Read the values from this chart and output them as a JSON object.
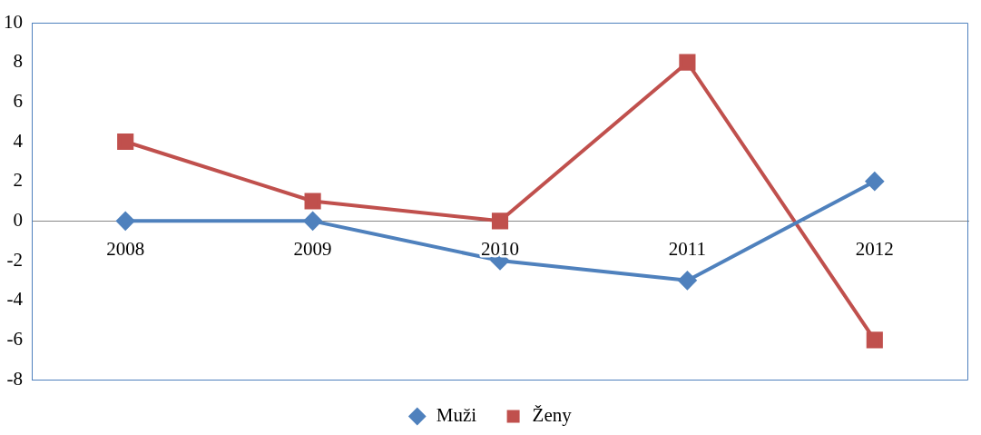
{
  "chart_data": {
    "type": "line",
    "categories": [
      "2008",
      "2009",
      "2010",
      "2011",
      "2012"
    ],
    "series": [
      {
        "name": "Muži",
        "color": "#4f81bd",
        "marker": "diamond",
        "values": [
          0,
          0,
          -2,
          -3,
          2
        ]
      },
      {
        "name": "Ženy",
        "color": "#c0504d",
        "marker": "square",
        "values": [
          4,
          1,
          0,
          8,
          -6
        ]
      }
    ],
    "ylim": [
      -8,
      10
    ],
    "yticks": [
      -8,
      -6,
      -4,
      -2,
      0,
      2,
      4,
      6,
      8,
      10
    ],
    "grid": false,
    "legend": "bottom"
  }
}
